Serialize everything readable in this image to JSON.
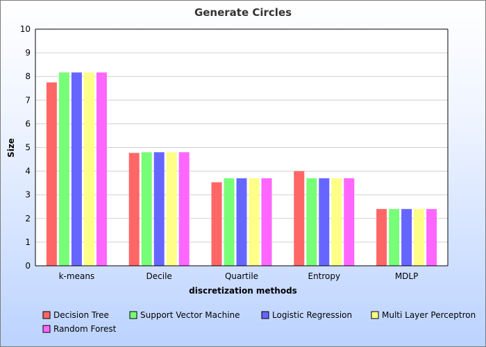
{
  "chart_data": {
    "type": "bar",
    "title": "Generate Circles",
    "xlabel": "discretization methods",
    "ylabel": "Size",
    "ylim": [
      0,
      10
    ],
    "yticks": [
      0,
      1,
      2,
      3,
      4,
      5,
      6,
      7,
      8,
      9,
      10
    ],
    "grid": true,
    "legend_position": "bottom",
    "categories": [
      "k-means",
      "Decile",
      "Quartile",
      "Entropy",
      "MDLP"
    ],
    "series": [
      {
        "name": "Decision Tree",
        "color": "#ff6666",
        "values": [
          7.75,
          4.77,
          3.53,
          4.0,
          2.4
        ]
      },
      {
        "name": "Support Vector Machine",
        "color": "#77ff77",
        "values": [
          8.17,
          4.8,
          3.7,
          3.7,
          2.4
        ]
      },
      {
        "name": "Logistic Regression",
        "color": "#6666ff",
        "values": [
          8.17,
          4.8,
          3.7,
          3.7,
          2.4
        ]
      },
      {
        "name": "Multi Layer Perceptron",
        "color": "#ffff88",
        "values": [
          8.17,
          4.8,
          3.7,
          3.7,
          2.4
        ]
      },
      {
        "name": "Random Forest",
        "color": "#ff66ff",
        "values": [
          8.17,
          4.8,
          3.7,
          3.7,
          2.4
        ]
      }
    ]
  }
}
